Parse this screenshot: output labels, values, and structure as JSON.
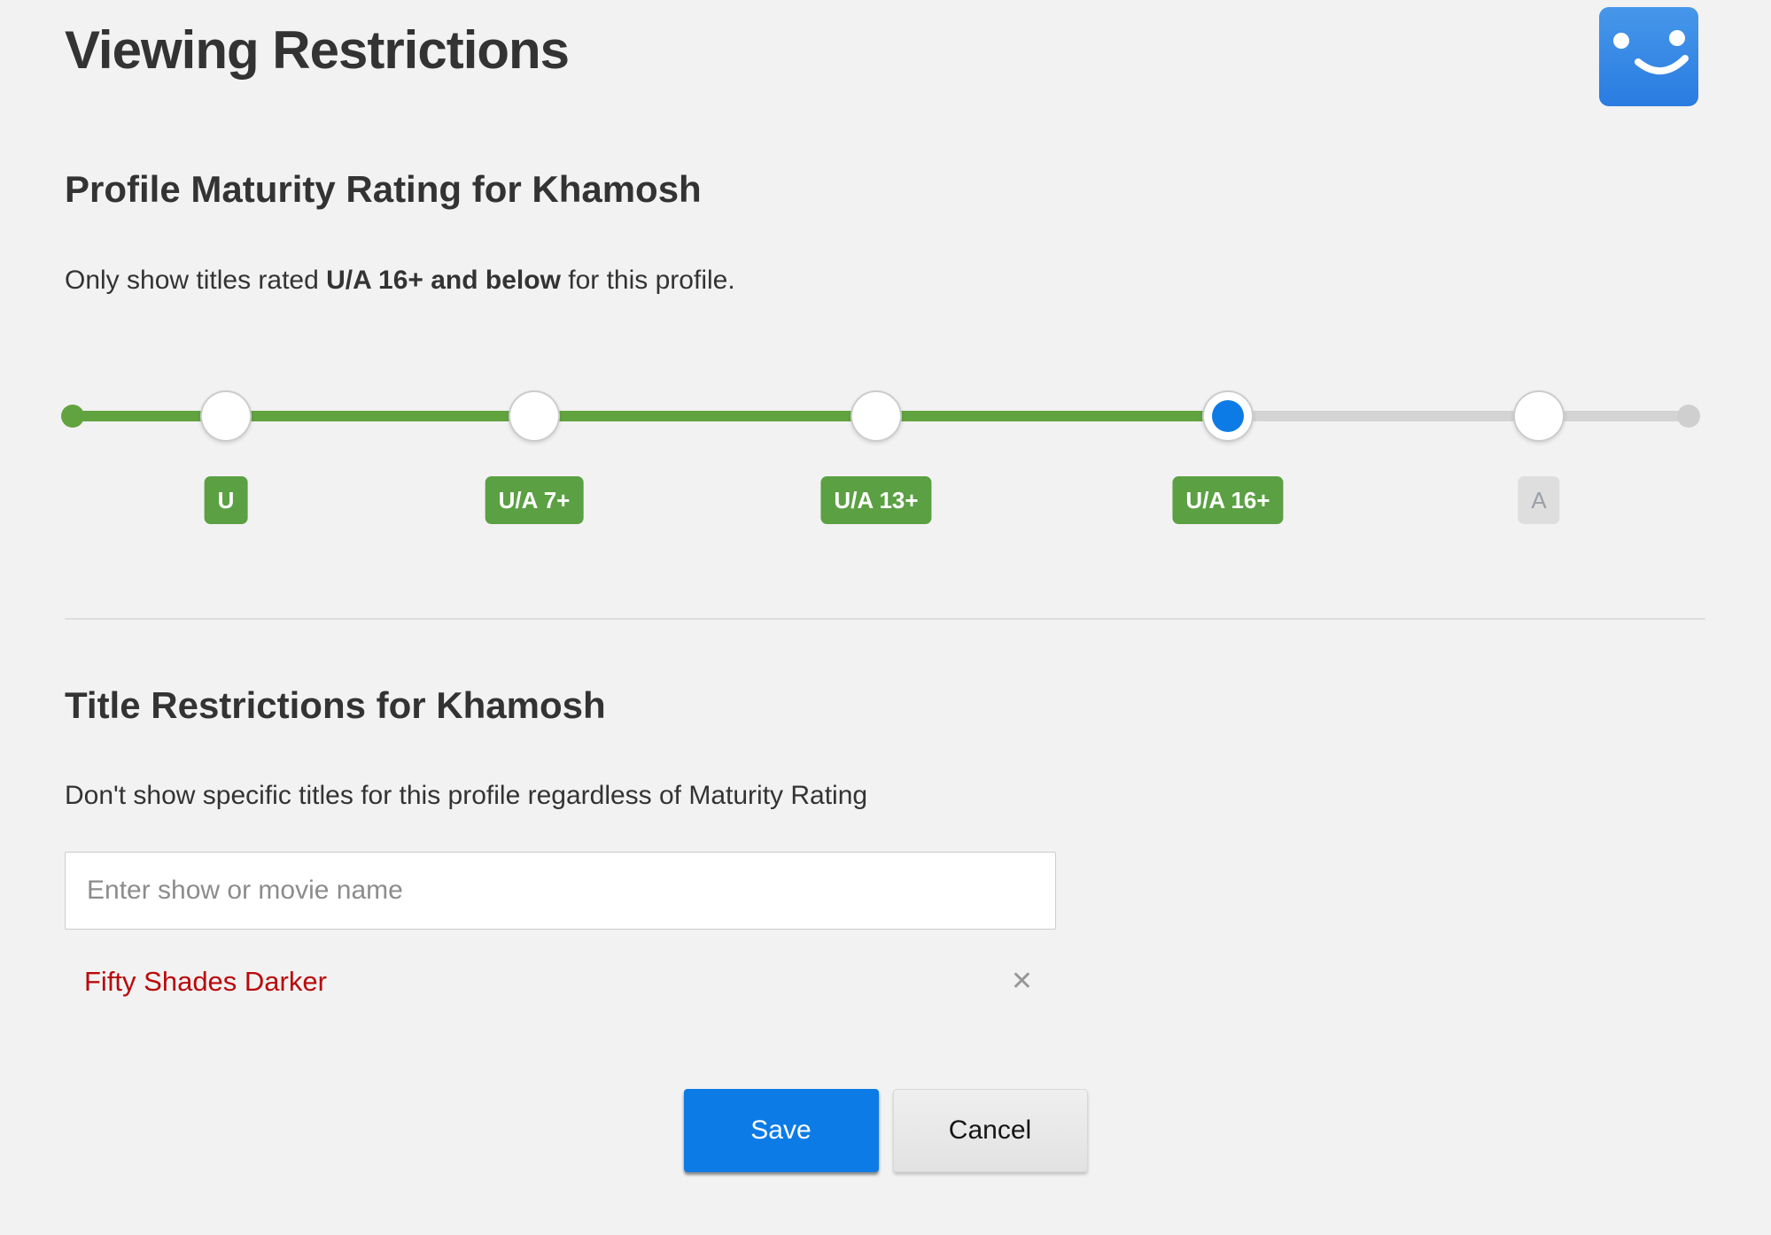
{
  "page": {
    "title": "Viewing Restrictions",
    "background_color": "#f2f2f2"
  },
  "profile_avatar": {
    "description": "blue smiley profile avatar",
    "color_top": "#4697ea",
    "color_bottom": "#2a7ce1"
  },
  "maturity": {
    "heading": "Profile Maturity Rating for Khamosh",
    "desc_prefix": "Only show titles rated ",
    "desc_bold": "U/A 16+ and below",
    "desc_suffix": " for this profile.",
    "slider": {
      "selected_rating": "U/A 16+",
      "stops": [
        {
          "label": "U",
          "state": "allowed"
        },
        {
          "label": "U/A 7+",
          "state": "allowed"
        },
        {
          "label": "U/A 13+",
          "state": "allowed"
        },
        {
          "label": "U/A 16+",
          "state": "selected"
        },
        {
          "label": "A",
          "state": "blocked"
        }
      ],
      "colors": {
        "active_track": "#61a33f",
        "inactive_track": "#d4d4d4",
        "selected_dot": "#0d7be6",
        "allowed_badge": "#5ba043",
        "blocked_badge": "#dedede",
        "blocked_badge_text": "#99a0ab"
      }
    }
  },
  "titles": {
    "heading": "Title Restrictions for Khamosh",
    "description": "Don't show specific titles for this profile regardless of Maturity Rating",
    "input_placeholder": "Enter show or movie name",
    "input_value": "",
    "restricted_titles": [
      {
        "name": "Fifty Shades Darker"
      }
    ],
    "remove_icon": "✕",
    "restricted_color": "#b9090b"
  },
  "actions": {
    "save_label": "Save",
    "cancel_label": "Cancel",
    "save_color": "#0d7be6"
  }
}
